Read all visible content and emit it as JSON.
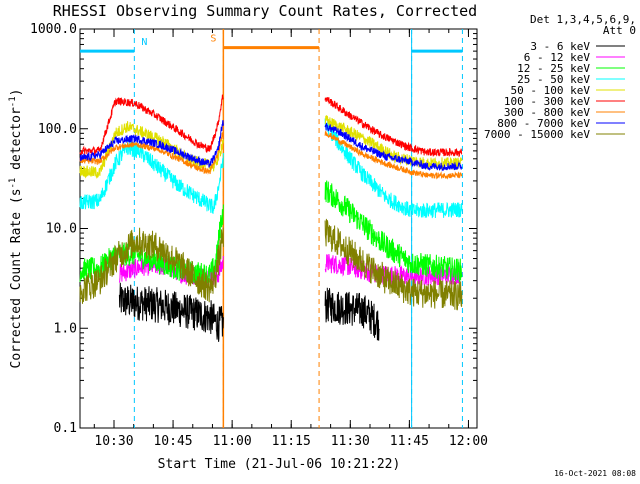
{
  "chart_data": {
    "type": "line",
    "title": "RHESSI Observing Summary Count Rates, Corrected",
    "xlabel": "Start Time (21-Jul-06 10:21:22)",
    "ylabel_parts": [
      "Corrected Count Rate (s",
      "-1",
      " detector",
      "-1",
      ")"
    ],
    "ylim": [
      0.1,
      1000
    ],
    "yscale": "log",
    "xlim_minutes": [
      0,
      100.8
    ],
    "x_ticks": [
      {
        "label": "10:30",
        "minutes": 8.63
      },
      {
        "label": "10:45",
        "minutes": 23.63
      },
      {
        "label": "11:00",
        "minutes": 38.63
      },
      {
        "label": "11:15",
        "minutes": 53.63
      },
      {
        "label": "11:30",
        "minutes": 68.63
      },
      {
        "label": "11:45",
        "minutes": 83.63
      },
      {
        "label": "12:00",
        "minutes": 98.63
      }
    ],
    "y_ticks": [
      {
        "label": "0.1",
        "value": 0.1
      },
      {
        "label": "1.0",
        "value": 1
      },
      {
        "label": "10.0",
        "value": 10
      },
      {
        "label": "100.0",
        "value": 100
      },
      {
        "label": "1000.0",
        "value": 1000
      }
    ],
    "legend_header": [
      "Det 1,3,4,5,6,9,",
      "Att 0"
    ],
    "legend_position": "right",
    "footer_date": "16-Oct-2021 08:08",
    "data_gap_minutes": [
      36.4,
      62.2
    ],
    "flags": [
      {
        "label": "N",
        "color": "#00c8ff",
        "level": 600,
        "segments": [
          [
            0,
            13.8
          ],
          [
            84.2,
            97.1
          ]
        ],
        "boundaries": [
          13.8,
          84.2,
          97.1
        ]
      },
      {
        "label": "S",
        "color": "#ff8000",
        "level": 650,
        "segments": [
          [
            36.4,
            60.7
          ]
        ],
        "boundaries": [
          36.4,
          60.7
        ]
      }
    ],
    "series": [
      {
        "name": "3 - 6 keV",
        "color": "#000000",
        "noise": 0.18,
        "points": [
          [
            10,
            1.9
          ],
          [
            20,
            1.7
          ],
          [
            33,
            1.3
          ],
          [
            35,
            1.1
          ],
          [
            63,
            1.7
          ],
          [
            72,
            1.5
          ],
          [
            76,
            1.1
          ]
        ]
      },
      {
        "name": "6 - 12 keV",
        "color": "#ff00ff",
        "noise": 0.1,
        "points": [
          [
            10,
            3.5
          ],
          [
            16,
            4.2
          ],
          [
            22,
            4.2
          ],
          [
            27,
            3.4
          ],
          [
            35,
            3.4
          ],
          [
            36.2,
            4.5
          ],
          [
            63,
            4.5
          ],
          [
            68,
            4.2
          ],
          [
            75,
            3.5
          ],
          [
            84,
            3.3
          ],
          [
            97,
            3.5
          ]
        ]
      },
      {
        "name": "12 - 25 keV",
        "color": "#00ff00",
        "noise": 0.12,
        "points": [
          [
            0,
            3.8
          ],
          [
            5,
            4
          ],
          [
            9,
            5.5
          ],
          [
            14,
            5.5
          ],
          [
            20,
            4.6
          ],
          [
            27,
            3.7
          ],
          [
            33,
            3.4
          ],
          [
            34.5,
            4.5
          ],
          [
            35.8,
            12
          ],
          [
            36.2,
            14
          ],
          [
            62.5,
            24
          ],
          [
            65,
            20
          ],
          [
            70,
            13
          ],
          [
            77,
            7
          ],
          [
            84,
            4.5
          ],
          [
            97,
            3.8
          ]
        ]
      },
      {
        "name": "25 - 50 keV",
        "color": "#00ffff",
        "noise": 0.08,
        "points": [
          [
            0,
            18
          ],
          [
            5,
            19
          ],
          [
            9,
            45
          ],
          [
            12,
            65
          ],
          [
            15,
            60
          ],
          [
            20,
            40
          ],
          [
            25,
            27
          ],
          [
            30,
            20
          ],
          [
            34,
            16
          ],
          [
            35.5,
            30
          ],
          [
            36.2,
            48
          ],
          [
            62.5,
            110
          ],
          [
            66,
            68
          ],
          [
            72,
            34
          ],
          [
            78,
            20
          ],
          [
            84,
            15
          ],
          [
            97,
            15.5
          ]
        ]
      },
      {
        "name": "50 - 100 keV",
        "color": "#e0e000",
        "noise": 0.06,
        "points": [
          [
            0,
            38
          ],
          [
            5,
            36
          ],
          [
            9,
            90
          ],
          [
            12,
            105
          ],
          [
            15,
            95
          ],
          [
            21,
            75
          ],
          [
            28,
            48
          ],
          [
            34,
            42
          ],
          [
            35.5,
            55
          ],
          [
            36.2,
            75
          ],
          [
            62.5,
            120
          ],
          [
            67,
            100
          ],
          [
            74,
            72
          ],
          [
            80,
            52
          ],
          [
            88,
            45
          ],
          [
            97,
            45
          ]
        ]
      },
      {
        "name": "100 - 300 keV",
        "color": "#ff0000",
        "noise": 0.04,
        "points": [
          [
            0,
            60
          ],
          [
            5,
            60
          ],
          [
            9,
            190
          ],
          [
            14,
            180
          ],
          [
            20,
            130
          ],
          [
            25,
            95
          ],
          [
            30,
            70
          ],
          [
            33,
            62
          ],
          [
            35,
            110
          ],
          [
            36.2,
            210
          ],
          [
            62.5,
            200
          ],
          [
            68,
            140
          ],
          [
            76,
            88
          ],
          [
            83,
            66
          ],
          [
            88,
            58
          ],
          [
            97,
            58
          ]
        ]
      },
      {
        "name": "300 - 800 keV",
        "color": "#ff8000",
        "noise": 0.03,
        "points": [
          [
            0,
            48
          ],
          [
            5,
            47
          ],
          [
            9,
            65
          ],
          [
            14,
            70
          ],
          [
            20,
            62
          ],
          [
            25,
            50
          ],
          [
            30,
            40
          ],
          [
            33,
            37
          ],
          [
            35,
            55
          ],
          [
            36.2,
            90
          ],
          [
            62.5,
            90
          ],
          [
            66,
            75
          ],
          [
            72,
            55
          ],
          [
            78,
            44
          ],
          [
            84,
            37
          ],
          [
            88,
            34
          ],
          [
            97,
            34
          ]
        ]
      },
      {
        "name": "800 - 7000 keV",
        "color": "#0000ff",
        "noise": 0.04,
        "points": [
          [
            0,
            50
          ],
          [
            5,
            55
          ],
          [
            9,
            75
          ],
          [
            14,
            80
          ],
          [
            20,
            70
          ],
          [
            25,
            58
          ],
          [
            30,
            48
          ],
          [
            33,
            44
          ],
          [
            35,
            60
          ],
          [
            36.2,
            115
          ],
          [
            62.5,
            105
          ],
          [
            66,
            92
          ],
          [
            72,
            65
          ],
          [
            78,
            52
          ],
          [
            84,
            47
          ],
          [
            88,
            42
          ],
          [
            97,
            42
          ]
        ]
      },
      {
        "name": "7000 - 15000 keV",
        "color": "#808000",
        "noise": 0.15,
        "points": [
          [
            0,
            2.4
          ],
          [
            5,
            3
          ],
          [
            9,
            5
          ],
          [
            14,
            7.5
          ],
          [
            20,
            6.5
          ],
          [
            25,
            4.5
          ],
          [
            30,
            3
          ],
          [
            33,
            2.5
          ],
          [
            34.5,
            3.5
          ],
          [
            36.2,
            8
          ],
          [
            62.5,
            9
          ],
          [
            66,
            7
          ],
          [
            72,
            4.5
          ],
          [
            78,
            3
          ],
          [
            84,
            2.3
          ],
          [
            97,
            2.1
          ]
        ]
      }
    ]
  }
}
